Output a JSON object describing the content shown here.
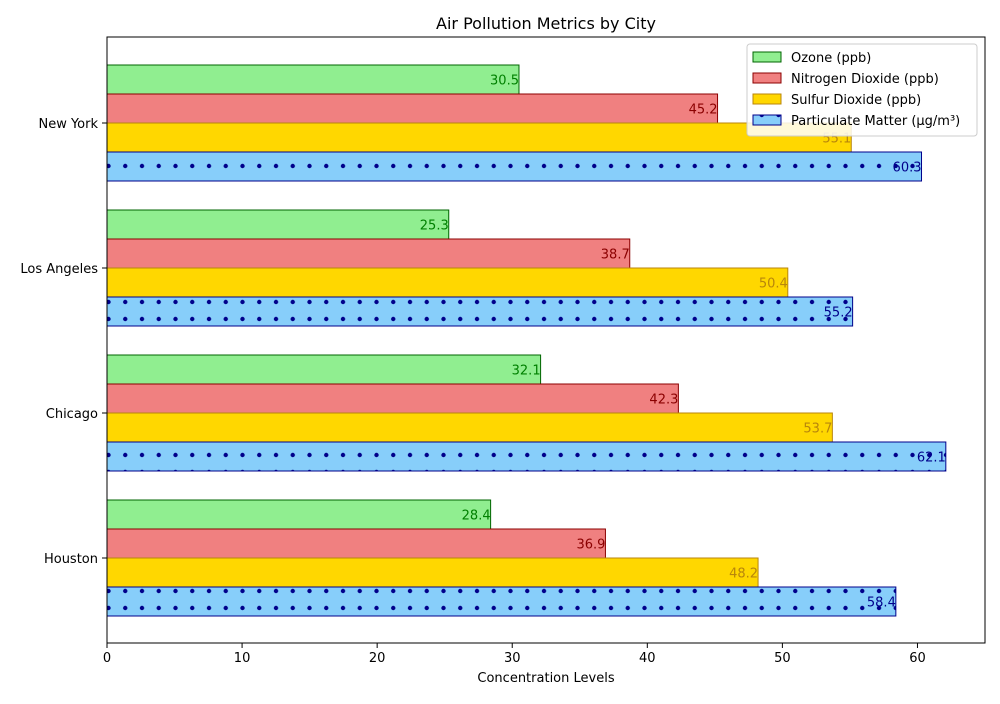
{
  "chart_data": {
    "type": "bar",
    "orientation": "horizontal",
    "title": "Air Pollution Metrics by City",
    "xlabel": "Concentration Levels",
    "ylabel": "",
    "xlim": [
      0,
      65
    ],
    "xticks": [
      0,
      10,
      20,
      30,
      40,
      50,
      60
    ],
    "grid": false,
    "legend_position": "top-right",
    "categories": [
      "New York",
      "Los Angeles",
      "Chicago",
      "Houston"
    ],
    "series": [
      {
        "name": "Ozone (ppb)",
        "values": [
          30.5,
          25.3,
          32.1,
          28.4
        ],
        "fill": "#90ee90",
        "edge": "#006400",
        "label_color": "#008000",
        "pattern": "none"
      },
      {
        "name": "Nitrogen Dioxide (ppb)",
        "values": [
          45.2,
          38.7,
          42.3,
          36.9
        ],
        "fill": "#f08080",
        "edge": "#8b0000",
        "label_color": "#8b0000",
        "pattern": "none"
      },
      {
        "name": "Sulfur Dioxide (ppb)",
        "values": [
          55.1,
          50.4,
          53.7,
          48.2
        ],
        "fill": "#ffd700",
        "edge": "#b8860b",
        "label_color": "#b8860b",
        "pattern": "none"
      },
      {
        "name": "Particulate Matter (µg/m³)",
        "values": [
          60.3,
          55.2,
          62.1,
          58.4
        ],
        "fill": "#87cefa",
        "edge": "#00008b",
        "label_color": "#00008b",
        "pattern": "dots"
      }
    ]
  }
}
